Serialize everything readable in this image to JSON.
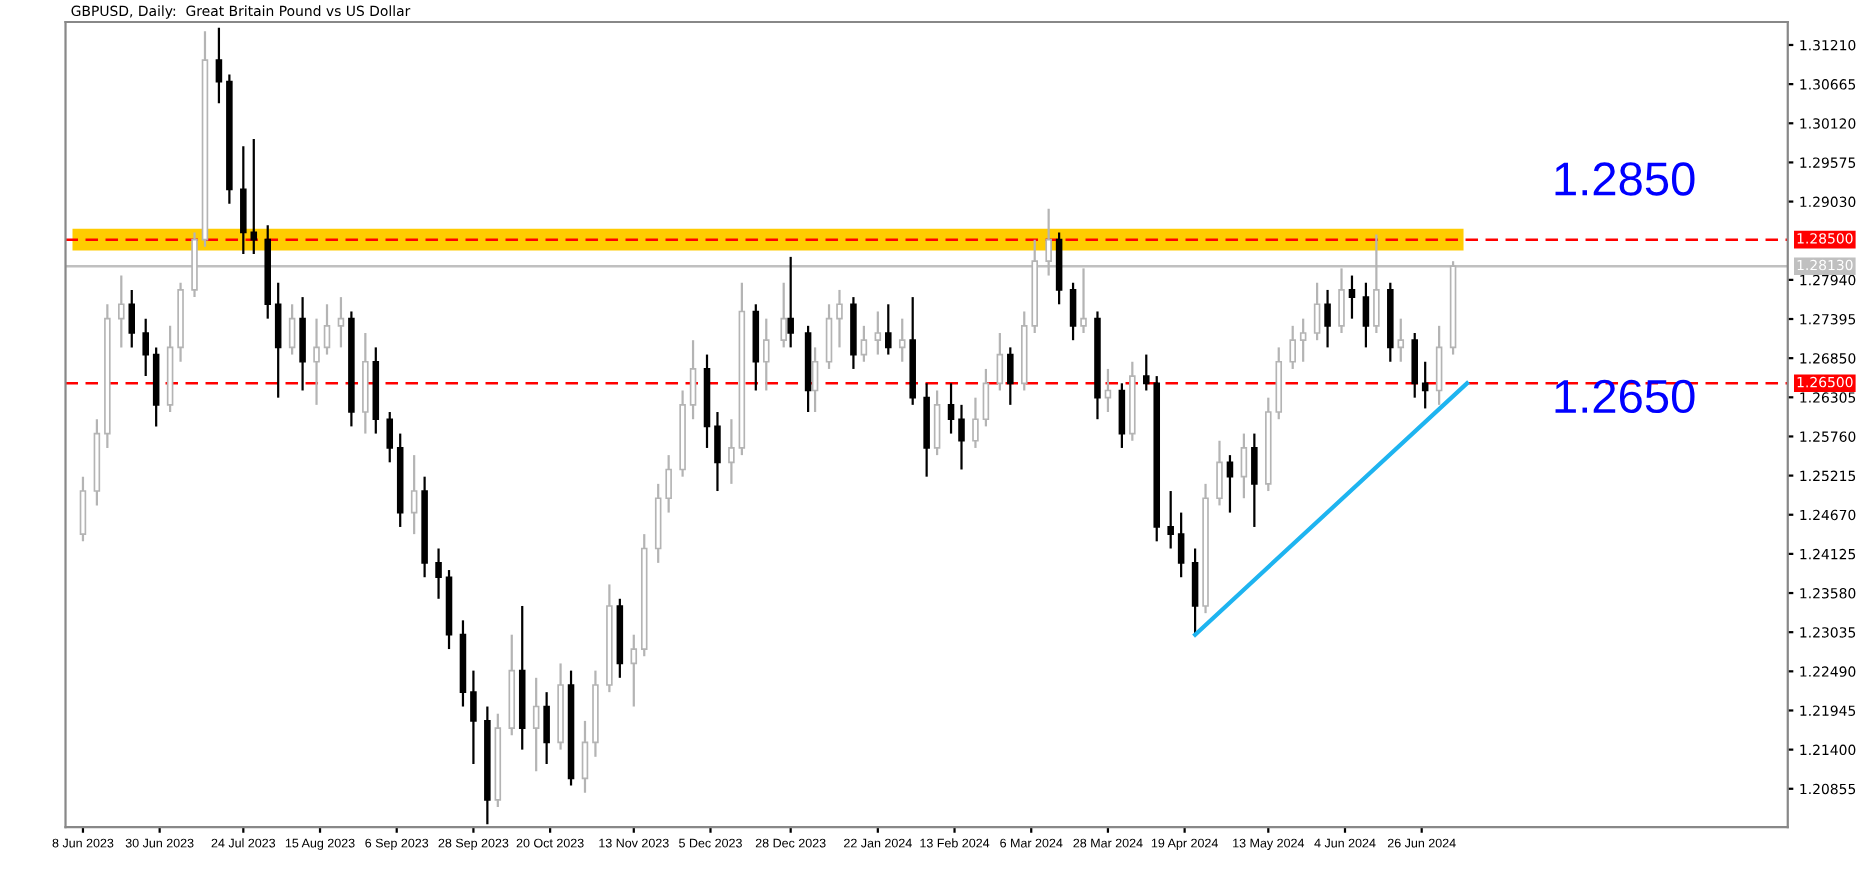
{
  "chart_data": {
    "type": "candlestick",
    "title": "GBPUSD, Daily:  Great Britain Pound vs US Dollar",
    "x": [
      "2023-06-08",
      "2023-06-12",
      "2023-06-15",
      "2023-06-19",
      "2023-06-22",
      "2023-06-26",
      "2023-06-29",
      "2023-07-03",
      "2023-07-06",
      "2023-07-10",
      "2023-07-13",
      "2023-07-17",
      "2023-07-20",
      "2023-07-24",
      "2023-07-27",
      "2023-07-31",
      "2023-08-03",
      "2023-08-07",
      "2023-08-10",
      "2023-08-14",
      "2023-08-17",
      "2023-08-21",
      "2023-08-24",
      "2023-08-28",
      "2023-08-31",
      "2023-09-04",
      "2023-09-07",
      "2023-09-11",
      "2023-09-14",
      "2023-09-18",
      "2023-09-21",
      "2023-09-25",
      "2023-09-28",
      "2023-10-02",
      "2023-10-05",
      "2023-10-09",
      "2023-10-12",
      "2023-10-16",
      "2023-10-19",
      "2023-10-23",
      "2023-10-26",
      "2023-10-30",
      "2023-11-02",
      "2023-11-06",
      "2023-11-09",
      "2023-11-13",
      "2023-11-16",
      "2023-11-20",
      "2023-11-23",
      "2023-11-27",
      "2023-11-30",
      "2023-12-04",
      "2023-12-07",
      "2023-12-11",
      "2023-12-14",
      "2023-12-18",
      "2023-12-21",
      "2023-12-26",
      "2023-12-28",
      "2024-01-02",
      "2024-01-04",
      "2024-01-08",
      "2024-01-11",
      "2024-01-15",
      "2024-01-18",
      "2024-01-22",
      "2024-01-25",
      "2024-01-29",
      "2024-02-01",
      "2024-02-05",
      "2024-02-08",
      "2024-02-12",
      "2024-02-15",
      "2024-02-19",
      "2024-02-22",
      "2024-02-26",
      "2024-02-29",
      "2024-03-04",
      "2024-03-07",
      "2024-03-11",
      "2024-03-14",
      "2024-03-18",
      "2024-03-21",
      "2024-03-25",
      "2024-03-28",
      "2024-04-01",
      "2024-04-04",
      "2024-04-08",
      "2024-04-11",
      "2024-04-15",
      "2024-04-18",
      "2024-04-22",
      "2024-04-25",
      "2024-04-29",
      "2024-05-02",
      "2024-05-06",
      "2024-05-09",
      "2024-05-13",
      "2024-05-16",
      "2024-05-20",
      "2024-05-23",
      "2024-05-27",
      "2024-05-30",
      "2024-06-03",
      "2024-06-06",
      "2024-06-10",
      "2024-06-13",
      "2024-06-17",
      "2024-06-20",
      "2024-06-24",
      "2024-06-27",
      "2024-07-01",
      "2024-07-05"
    ],
    "ohlc": [
      [
        1.244,
        1.252,
        1.243,
        1.25
      ],
      [
        1.25,
        1.26,
        1.248,
        1.258
      ],
      [
        1.258,
        1.276,
        1.256,
        1.274
      ],
      [
        1.274,
        1.28,
        1.27,
        1.276
      ],
      [
        1.276,
        1.278,
        1.27,
        1.272
      ],
      [
        1.272,
        1.274,
        1.266,
        1.269
      ],
      [
        1.269,
        1.27,
        1.259,
        1.262
      ],
      [
        1.262,
        1.273,
        1.261,
        1.27
      ],
      [
        1.27,
        1.279,
        1.268,
        1.278
      ],
      [
        1.278,
        1.286,
        1.277,
        1.285
      ],
      [
        1.285,
        1.314,
        1.284,
        1.31
      ],
      [
        1.31,
        1.3145,
        1.304,
        1.307
      ],
      [
        1.307,
        1.308,
        1.29,
        1.292
      ],
      [
        1.292,
        1.298,
        1.283,
        1.286
      ],
      [
        1.286,
        1.299,
        1.283,
        1.285
      ],
      [
        1.285,
        1.287,
        1.274,
        1.276
      ],
      [
        1.276,
        1.279,
        1.263,
        1.27
      ],
      [
        1.27,
        1.276,
        1.269,
        1.274
      ],
      [
        1.274,
        1.277,
        1.264,
        1.268
      ],
      [
        1.268,
        1.274,
        1.262,
        1.27
      ],
      [
        1.27,
        1.276,
        1.269,
        1.273
      ],
      [
        1.273,
        1.277,
        1.27,
        1.274
      ],
      [
        1.274,
        1.275,
        1.259,
        1.261
      ],
      [
        1.261,
        1.272,
        1.258,
        1.268
      ],
      [
        1.268,
        1.27,
        1.258,
        1.26
      ],
      [
        1.26,
        1.261,
        1.254,
        1.256
      ],
      [
        1.256,
        1.258,
        1.245,
        1.247
      ],
      [
        1.247,
        1.255,
        1.244,
        1.25
      ],
      [
        1.25,
        1.252,
        1.238,
        1.24
      ],
      [
        1.24,
        1.242,
        1.235,
        1.238
      ],
      [
        1.238,
        1.239,
        1.228,
        1.23
      ],
      [
        1.23,
        1.232,
        1.22,
        1.222
      ],
      [
        1.222,
        1.225,
        1.212,
        1.218
      ],
      [
        1.218,
        1.22,
        1.2036,
        1.207
      ],
      [
        1.207,
        1.219,
        1.206,
        1.217
      ],
      [
        1.217,
        1.23,
        1.216,
        1.225
      ],
      [
        1.225,
        1.234,
        1.214,
        1.217
      ],
      [
        1.217,
        1.224,
        1.211,
        1.22
      ],
      [
        1.22,
        1.222,
        1.212,
        1.215
      ],
      [
        1.215,
        1.226,
        1.214,
        1.223
      ],
      [
        1.223,
        1.225,
        1.209,
        1.21
      ],
      [
        1.21,
        1.218,
        1.208,
        1.215
      ],
      [
        1.215,
        1.225,
        1.213,
        1.223
      ],
      [
        1.223,
        1.237,
        1.222,
        1.234
      ],
      [
        1.234,
        1.235,
        1.224,
        1.226
      ],
      [
        1.226,
        1.23,
        1.22,
        1.228
      ],
      [
        1.228,
        1.244,
        1.227,
        1.242
      ],
      [
        1.242,
        1.251,
        1.24,
        1.249
      ],
      [
        1.249,
        1.255,
        1.247,
        1.253
      ],
      [
        1.253,
        1.264,
        1.252,
        1.262
      ],
      [
        1.262,
        1.271,
        1.26,
        1.267
      ],
      [
        1.267,
        1.269,
        1.256,
        1.259
      ],
      [
        1.259,
        1.261,
        1.25,
        1.254
      ],
      [
        1.254,
        1.26,
        1.251,
        1.256
      ],
      [
        1.256,
        1.279,
        1.255,
        1.275
      ],
      [
        1.275,
        1.276,
        1.264,
        1.268
      ],
      [
        1.268,
        1.274,
        1.264,
        1.271
      ],
      [
        1.271,
        1.279,
        1.27,
        1.274
      ],
      [
        1.274,
        1.2826,
        1.27,
        1.272
      ],
      [
        1.272,
        1.273,
        1.261,
        1.264
      ],
      [
        1.264,
        1.27,
        1.261,
        1.268
      ],
      [
        1.268,
        1.276,
        1.267,
        1.274
      ],
      [
        1.274,
        1.278,
        1.27,
        1.276
      ],
      [
        1.276,
        1.277,
        1.267,
        1.269
      ],
      [
        1.269,
        1.273,
        1.268,
        1.271
      ],
      [
        1.271,
        1.275,
        1.269,
        1.272
      ],
      [
        1.272,
        1.276,
        1.269,
        1.27
      ],
      [
        1.27,
        1.274,
        1.268,
        1.271
      ],
      [
        1.271,
        1.277,
        1.262,
        1.263
      ],
      [
        1.263,
        1.265,
        1.252,
        1.256
      ],
      [
        1.256,
        1.264,
        1.255,
        1.262
      ],
      [
        1.262,
        1.265,
        1.258,
        1.26
      ],
      [
        1.26,
        1.262,
        1.253,
        1.257
      ],
      [
        1.257,
        1.263,
        1.256,
        1.26
      ],
      [
        1.26,
        1.267,
        1.259,
        1.265
      ],
      [
        1.265,
        1.272,
        1.264,
        1.269
      ],
      [
        1.269,
        1.27,
        1.262,
        1.265
      ],
      [
        1.265,
        1.275,
        1.264,
        1.273
      ],
      [
        1.273,
        1.285,
        1.272,
        1.282
      ],
      [
        1.282,
        1.2893,
        1.28,
        1.285
      ],
      [
        1.285,
        1.286,
        1.276,
        1.278
      ],
      [
        1.278,
        1.279,
        1.271,
        1.273
      ],
      [
        1.273,
        1.281,
        1.272,
        1.274
      ],
      [
        1.274,
        1.275,
        1.26,
        1.263
      ],
      [
        1.263,
        1.267,
        1.261,
        1.264
      ],
      [
        1.264,
        1.265,
        1.256,
        1.258
      ],
      [
        1.258,
        1.268,
        1.257,
        1.266
      ],
      [
        1.266,
        1.269,
        1.264,
        1.265
      ],
      [
        1.265,
        1.266,
        1.243,
        1.245
      ],
      [
        1.245,
        1.25,
        1.242,
        1.244
      ],
      [
        1.244,
        1.247,
        1.238,
        1.24
      ],
      [
        1.24,
        1.242,
        1.23,
        1.234
      ],
      [
        1.234,
        1.251,
        1.233,
        1.249
      ],
      [
        1.249,
        1.257,
        1.248,
        1.254
      ],
      [
        1.254,
        1.255,
        1.247,
        1.252
      ],
      [
        1.252,
        1.258,
        1.249,
        1.256
      ],
      [
        1.256,
        1.258,
        1.245,
        1.251
      ],
      [
        1.251,
        1.263,
        1.25,
        1.261
      ],
      [
        1.261,
        1.27,
        1.26,
        1.268
      ],
      [
        1.268,
        1.273,
        1.267,
        1.271
      ],
      [
        1.271,
        1.274,
        1.268,
        1.272
      ],
      [
        1.272,
        1.279,
        1.271,
        1.276
      ],
      [
        1.276,
        1.278,
        1.27,
        1.273
      ],
      [
        1.273,
        1.281,
        1.272,
        1.278
      ],
      [
        1.278,
        1.28,
        1.274,
        1.277
      ],
      [
        1.277,
        1.279,
        1.27,
        1.273
      ],
      [
        1.273,
        1.2857,
        1.272,
        1.278
      ],
      [
        1.278,
        1.279,
        1.268,
        1.27
      ],
      [
        1.27,
        1.274,
        1.268,
        1.271
      ],
      [
        1.271,
        1.272,
        1.263,
        1.265
      ],
      [
        1.265,
        1.268,
        1.2615,
        1.264
      ],
      [
        1.264,
        1.273,
        1.262,
        1.27
      ],
      [
        1.27,
        1.282,
        1.269,
        1.2813
      ]
    ],
    "series": [
      {
        "type": "line",
        "color": "#1eb4f0",
        "x": [
          "2024-04-22",
          "2024-07-09"
        ],
        "values": [
          1.23,
          1.265
        ]
      }
    ],
    "xlim": [
      "2023-06-03",
      "2024-10-09"
    ],
    "ylim": [
      1.2032,
      1.3153
    ],
    "xticks": [
      {
        "value": "2023-06-08",
        "label": "8 Jun 2023"
      },
      {
        "value": "2023-06-30",
        "label": "30 Jun 2023"
      },
      {
        "value": "2023-07-24",
        "label": "24 Jul 2023"
      },
      {
        "value": "2023-08-15",
        "label": "15 Aug 2023"
      },
      {
        "value": "2023-09-06",
        "label": "6 Sep 2023"
      },
      {
        "value": "2023-09-28",
        "label": "28 Sep 2023"
      },
      {
        "value": "2023-10-20",
        "label": "20 Oct 2023"
      },
      {
        "value": "2023-11-13",
        "label": "13 Nov 2023"
      },
      {
        "value": "2023-12-05",
        "label": "5 Dec 2023"
      },
      {
        "value": "2023-12-28",
        "label": "28 Dec 2023"
      },
      {
        "value": "2024-01-22",
        "label": "22 Jan 2024"
      },
      {
        "value": "2024-02-13",
        "label": "13 Feb 2024"
      },
      {
        "value": "2024-03-06",
        "label": "6 Mar 2024"
      },
      {
        "value": "2024-03-28",
        "label": "28 Mar 2024"
      },
      {
        "value": "2024-04-19",
        "label": "19 Apr 2024"
      },
      {
        "value": "2024-05-13",
        "label": "13 May 2024"
      },
      {
        "value": "2024-06-04",
        "label": "4 Jun 2024"
      },
      {
        "value": "2024-06-26",
        "label": "26 Jun 2024"
      }
    ],
    "yticks": [
      {
        "value": 1.3121,
        "label": "1.31210"
      },
      {
        "value": 1.30665,
        "label": "1.30665"
      },
      {
        "value": 1.3012,
        "label": "1.30120"
      },
      {
        "value": 1.29575,
        "label": "1.29575"
      },
      {
        "value": 1.2903,
        "label": "1.29030"
      },
      {
        "value": 1.2794,
        "label": "1.27940"
      },
      {
        "value": 1.27395,
        "label": "1.27395"
      },
      {
        "value": 1.2685,
        "label": "1.26850"
      },
      {
        "value": 1.26305,
        "label": "1.26305"
      },
      {
        "value": 1.2576,
        "label": "1.25760"
      },
      {
        "value": 1.25215,
        "label": "1.25215"
      },
      {
        "value": 1.2467,
        "label": "1.24670"
      },
      {
        "value": 1.24125,
        "label": "1.24125"
      },
      {
        "value": 1.2358,
        "label": "1.23580"
      },
      {
        "value": 1.23035,
        "label": "1.23035"
      },
      {
        "value": 1.2249,
        "label": "1.22490"
      },
      {
        "value": 1.21945,
        "label": "1.21945"
      },
      {
        "value": 1.214,
        "label": "1.21400"
      },
      {
        "value": 1.20855,
        "label": "1.20855"
      }
    ],
    "bands": [
      {
        "axis": "y",
        "from": 1.2835,
        "to": 1.2865,
        "color": "#ffcc00"
      }
    ],
    "ref_lines": [
      {
        "axis": "y",
        "value": 1.285,
        "label": "1.28500",
        "color": "#ff0000",
        "line_style": "dashed"
      },
      {
        "axis": "y",
        "value": 1.265,
        "label": "1.26500",
        "color": "#ff0000",
        "line_style": "dashed"
      },
      {
        "axis": "y",
        "value": 1.2813,
        "label": "1.28130",
        "color": "#c0c0c0",
        "line_style": "solid"
      }
    ],
    "annotations": [
      "1.2850",
      "1.2650"
    ],
    "grid": false,
    "legend": false
  }
}
